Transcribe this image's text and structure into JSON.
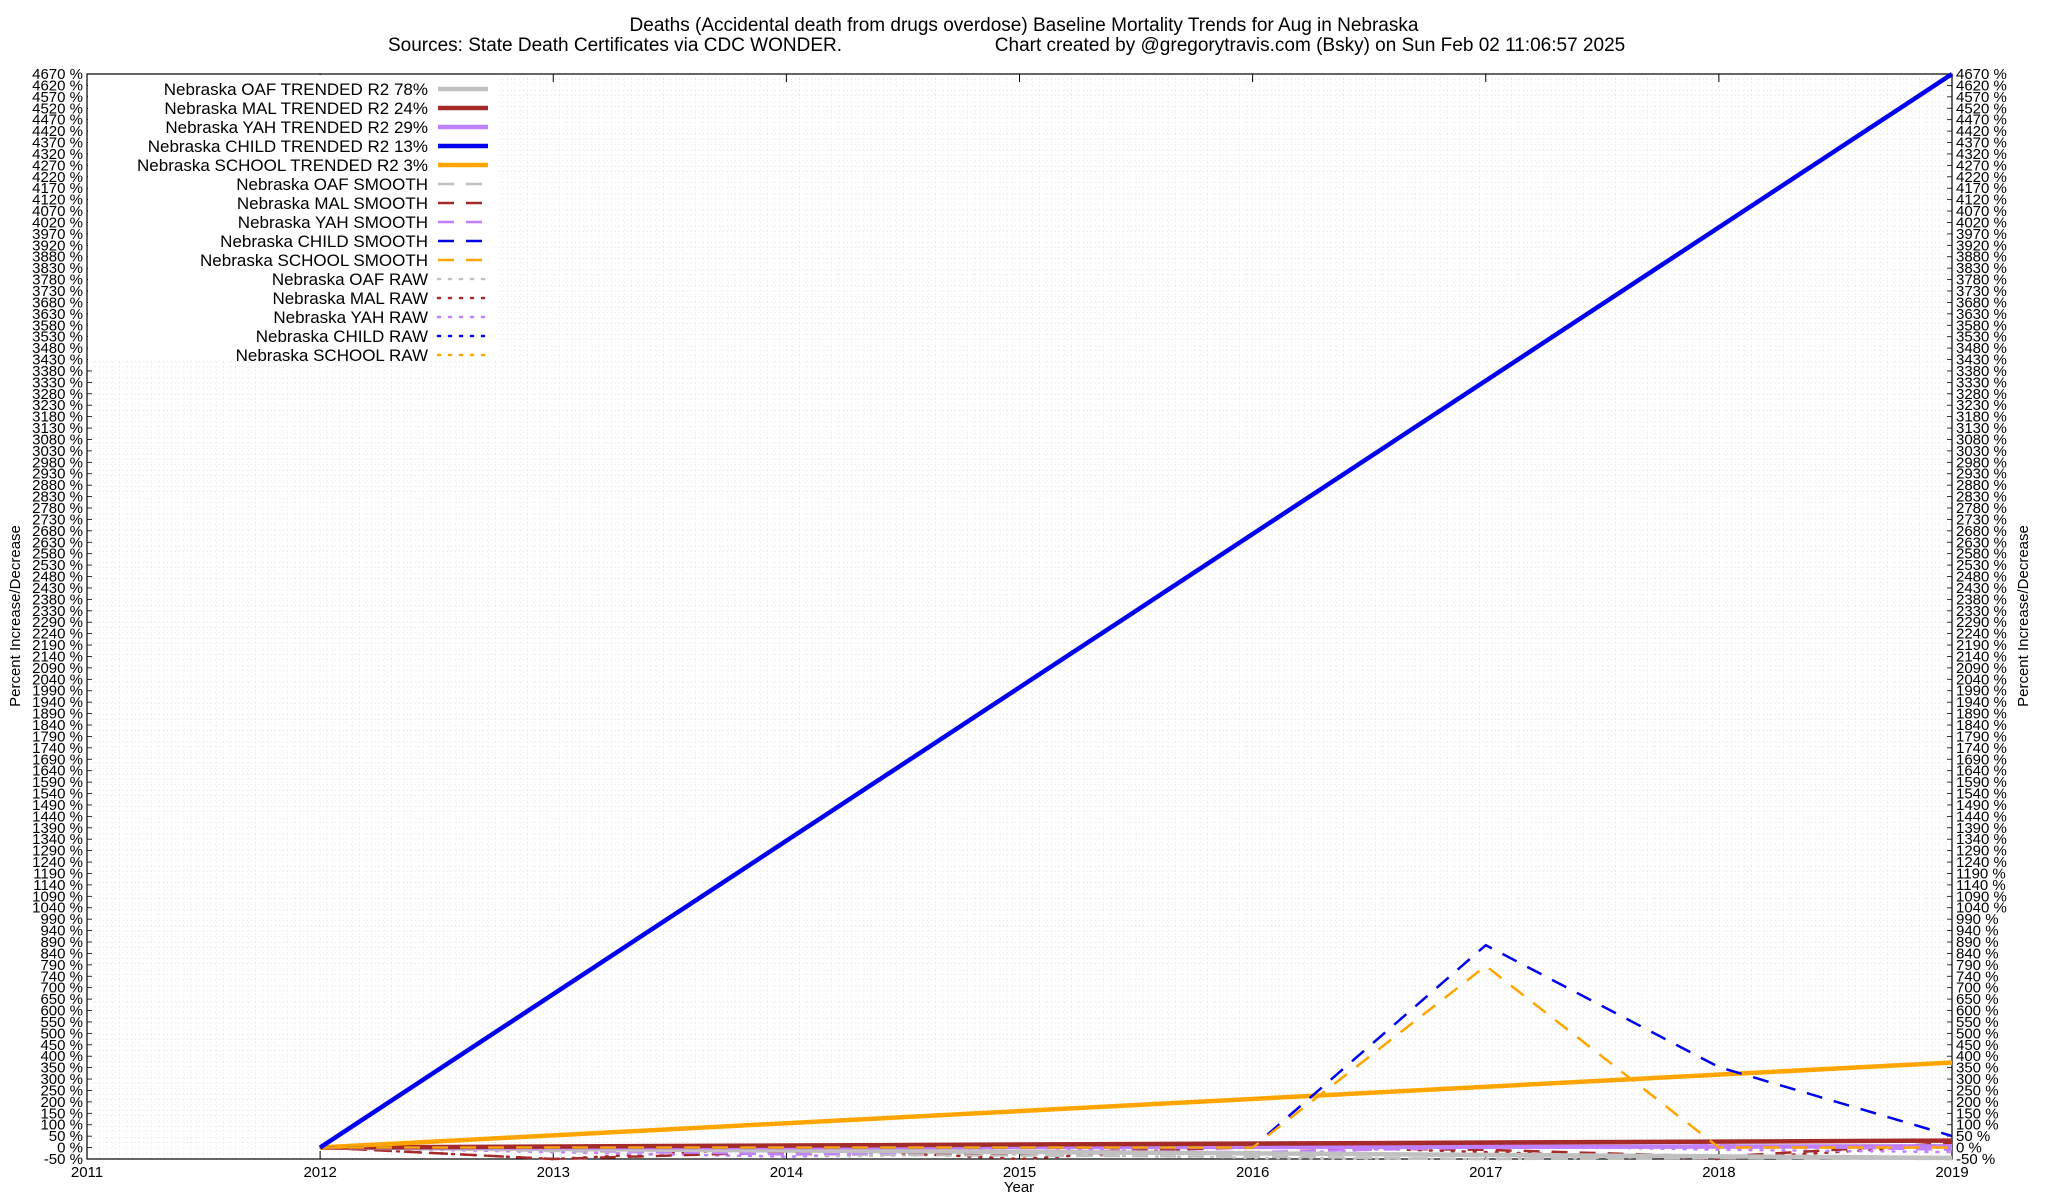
{
  "chart_data": {
    "type": "line",
    "title": "Deaths (Accidental death from drugs overdose)  Baseline Mortality Trends for Aug in Nebraska",
    "subtitle_left": "Sources: State Death Certificates via CDC WONDER.",
    "subtitle_right": "Chart created by @gregorytravis.com (Bsky) on Sun Feb 02 11:06:57 2025",
    "xlabel": "Year",
    "ylabel": "Percent Increase/Decrease",
    "y2label": "Percent Increase/Decrease",
    "xlim": [
      2011,
      2019
    ],
    "ylim": [
      -50,
      4670
    ],
    "x_ticks": [
      "2011",
      "2012",
      "2013",
      "2014",
      "2015",
      "2016",
      "2017",
      "2018",
      "2019"
    ],
    "y_tick_labels": {
      "bottom": "-50 %",
      "top": "4670 %"
    },
    "grid": true,
    "legend_position": "top-left",
    "colors": {
      "oaf": "#c0c0c0",
      "mal": "#a52a2a",
      "yah": "#c080ff",
      "child": "#0000ee",
      "school": "#ffa500"
    },
    "series": [
      {
        "name": "Nebraska OAF TRENDED R2  78%",
        "style": "solid",
        "color": "#c0c0c0",
        "x": [
          2012,
          2019
        ],
        "y": [
          0,
          -45
        ]
      },
      {
        "name": "Nebraska MAL TRENDED R2  24%",
        "style": "solid",
        "color": "#a52a2a",
        "x": [
          2012,
          2019
        ],
        "y": [
          0,
          30
        ]
      },
      {
        "name": "Nebraska YAH TRENDED R2  29%",
        "style": "solid",
        "color": "#c080ff",
        "x": [
          2012,
          2019
        ],
        "y": [
          0,
          5
        ]
      },
      {
        "name": "Nebraska CHILD TRENDED R2  13%",
        "style": "solid",
        "color": "#0000ee",
        "x": [
          2012,
          2019
        ],
        "y": [
          0,
          4670
        ]
      },
      {
        "name": "Nebraska SCHOOL TRENDED R2  3%",
        "style": "solid",
        "color": "#ffa500",
        "x": [
          2012,
          2019
        ],
        "y": [
          0,
          370
        ]
      },
      {
        "name": "Nebraska OAF SMOOTH",
        "style": "dashed",
        "color": "#c0c0c0",
        "x": [
          2012,
          2013,
          2014,
          2015,
          2016,
          2017,
          2018,
          2019
        ],
        "y": [
          0,
          -15,
          -30,
          -35,
          -40,
          -50,
          -45,
          -50
        ]
      },
      {
        "name": "Nebraska MAL SMOOTH",
        "style": "dashed",
        "color": "#a52a2a",
        "x": [
          2012,
          2013,
          2014,
          2015,
          2016,
          2017,
          2018,
          2019
        ],
        "y": [
          0,
          -50,
          -20,
          -25,
          0,
          -10,
          -40,
          20
        ]
      },
      {
        "name": "Nebraska YAH SMOOTH",
        "style": "dashed",
        "color": "#c080ff",
        "x": [
          2012,
          2013,
          2014,
          2015,
          2016,
          2017,
          2018,
          2019
        ],
        "y": [
          0,
          -10,
          -30,
          -15,
          -20,
          0,
          10,
          -10
        ]
      },
      {
        "name": "Nebraska CHILD SMOOTH",
        "style": "dashed",
        "color": "#0000ee",
        "x": [
          2012,
          2013,
          2014,
          2015,
          2016,
          2017,
          2018,
          2019
        ],
        "y": [
          0,
          0,
          0,
          0,
          0,
          880,
          350,
          50
        ]
      },
      {
        "name": "Nebraska SCHOOL SMOOTH",
        "style": "dashed",
        "color": "#ffa500",
        "x": [
          2012,
          2013,
          2014,
          2015,
          2016,
          2017,
          2018,
          2019
        ],
        "y": [
          0,
          0,
          0,
          0,
          0,
          790,
          0,
          0
        ]
      },
      {
        "name": "Nebraska OAF RAW",
        "style": "dotted",
        "color": "#c0c0c0",
        "x": [
          2012,
          2013,
          2014,
          2015,
          2016,
          2017,
          2018,
          2019
        ],
        "y": [
          0,
          -20,
          -40,
          -30,
          -45,
          -50,
          -40,
          -50
        ]
      },
      {
        "name": "Nebraska MAL RAW",
        "style": "dotted",
        "color": "#a52a2a",
        "x": [
          2012,
          2013,
          2014,
          2015,
          2016,
          2017,
          2018,
          2019
        ],
        "y": [
          0,
          -50,
          0,
          -50,
          10,
          -20,
          -50,
          10
        ]
      },
      {
        "name": "Nebraska YAH RAW",
        "style": "dotted",
        "color": "#c080ff",
        "x": [
          2012,
          2013,
          2014,
          2015,
          2016,
          2017,
          2018,
          2019
        ],
        "y": [
          0,
          -20,
          -40,
          0,
          -30,
          10,
          -10,
          -20
        ]
      },
      {
        "name": "Nebraska CHILD RAW",
        "style": "dotted",
        "color": "#0000ee",
        "x": [
          2012,
          2013,
          2014,
          2015,
          2016,
          2017,
          2018,
          2019
        ],
        "y": [
          0,
          0,
          0,
          0,
          0,
          0,
          0,
          0
        ]
      },
      {
        "name": "Nebraska SCHOOL RAW",
        "style": "dotted",
        "color": "#ffa500",
        "x": [
          2012,
          2013,
          2014,
          2015,
          2016,
          2017,
          2018,
          2019
        ],
        "y": [
          0,
          0,
          0,
          0,
          0,
          0,
          0,
          0
        ]
      }
    ]
  }
}
